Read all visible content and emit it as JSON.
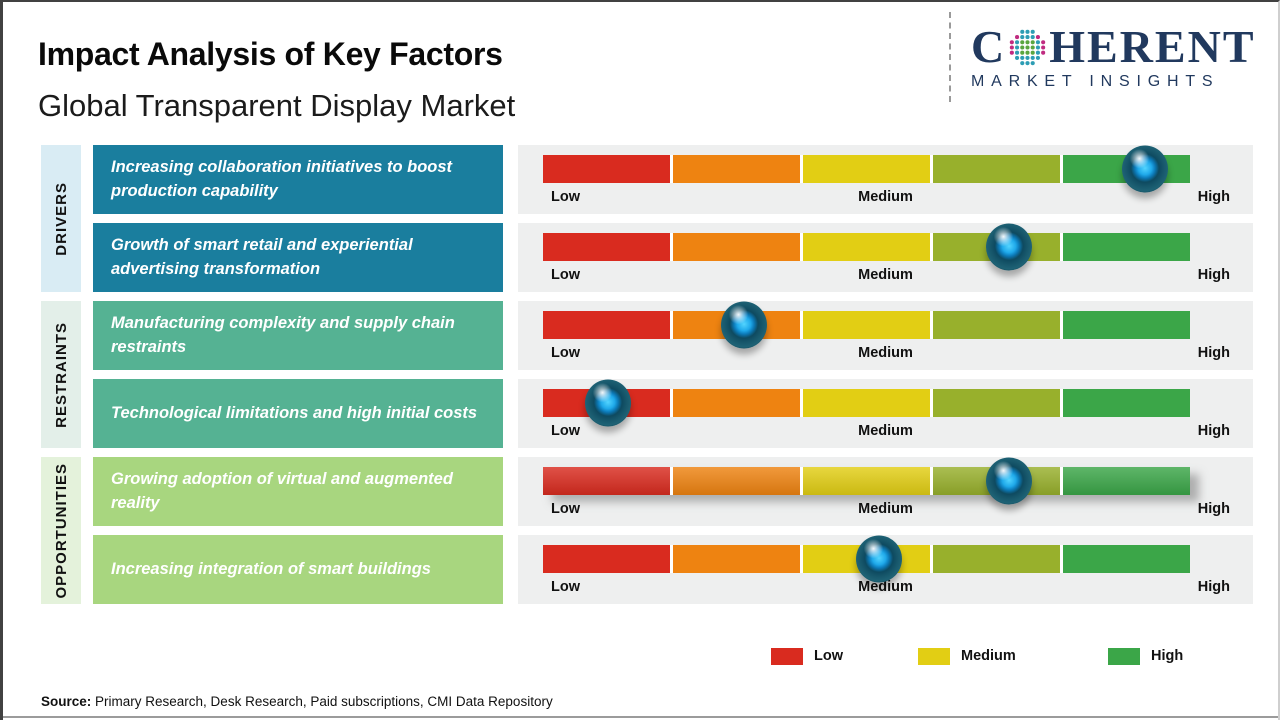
{
  "header": {
    "title": "Impact Analysis of Key Factors",
    "subtitle": "Global Transparent Display Market"
  },
  "logo": {
    "word_start": "C",
    "word_end": "HERENT",
    "tagline": "MARKET INSIGHTS",
    "globe_icon": "dotted-globe",
    "brand_color": "#21395E"
  },
  "scale": {
    "low": "Low",
    "medium": "Medium",
    "high": "High"
  },
  "groups": [
    {
      "label": "DRIVERS",
      "rows": [
        {
          "text": "Increasing collaboration initiatives to boost production capability",
          "marker_pos": 0.93
        },
        {
          "text": "Growth of smart retail and experiential advertising transformation",
          "marker_pos": 0.72
        }
      ]
    },
    {
      "label": "RESTRAINTS",
      "rows": [
        {
          "text": "Manufacturing complexity and supply chain restraints",
          "marker_pos": 0.31
        },
        {
          "text": "Technological limitations and high initial costs",
          "marker_pos": 0.1
        }
      ]
    },
    {
      "label": "OPPORTUNITIES",
      "rows": [
        {
          "text": "Growing adoption of virtual and augmented reality",
          "marker_pos": 0.72
        },
        {
          "text": "Increasing integration of smart buildings",
          "marker_pos": 0.52
        }
      ]
    }
  ],
  "legend": [
    {
      "label": "Low",
      "color": "#D92B1F"
    },
    {
      "label": "Medium",
      "color": "#E2CE14"
    },
    {
      "label": "High",
      "color": "#3BA648"
    }
  ],
  "source": {
    "label": "Source:",
    "text": "Primary Research, Desk Research, Paid subscriptions, CMI Data Repository"
  },
  "colors": {
    "drivers_box": "#1A7E9E",
    "drivers_label_bg": "#D9ECF4",
    "restraints_box": "#55B293",
    "restraints_label_bg": "#E3EFE9",
    "opportunities_box": "#A8D67F",
    "opportunities_label_bg": "#E4F2DB",
    "panel_bg": "#EEEFEF",
    "bar_segments": [
      "#D92B1F",
      "#EE8311",
      "#E2CE14",
      "#98B02C",
      "#3BA648"
    ]
  },
  "chart_data": {
    "type": "scatter",
    "title": "Impact Analysis of Key Factors",
    "subtitle": "Global Transparent Display Market",
    "x_axis": {
      "tick_labels": [
        "Low",
        "Medium",
        "High"
      ],
      "range": [
        0,
        1
      ],
      "grid": false
    },
    "legend_position": "bottom",
    "segment_colors": [
      "#D92B1F",
      "#EE8311",
      "#E2CE14",
      "#98B02C",
      "#3BA648"
    ],
    "points": [
      {
        "category": "Drivers",
        "factor": "Increasing collaboration initiatives to boost production capability",
        "impact_position": 0.93,
        "impact_level": "High"
      },
      {
        "category": "Drivers",
        "factor": "Growth of smart retail and experiential advertising transformation",
        "impact_position": 0.72,
        "impact_level": "Medium-High"
      },
      {
        "category": "Restraints",
        "factor": "Manufacturing complexity and supply chain restraints",
        "impact_position": 0.31,
        "impact_level": "Low-Medium"
      },
      {
        "category": "Restraints",
        "factor": "Technological limitations and high initial costs",
        "impact_position": 0.1,
        "impact_level": "Low"
      },
      {
        "category": "Opportunities",
        "factor": "Growing adoption of virtual and augmented reality",
        "impact_position": 0.72,
        "impact_level": "Medium-High"
      },
      {
        "category": "Opportunities",
        "factor": "Increasing integration of smart buildings",
        "impact_position": 0.52,
        "impact_level": "Medium"
      }
    ]
  }
}
